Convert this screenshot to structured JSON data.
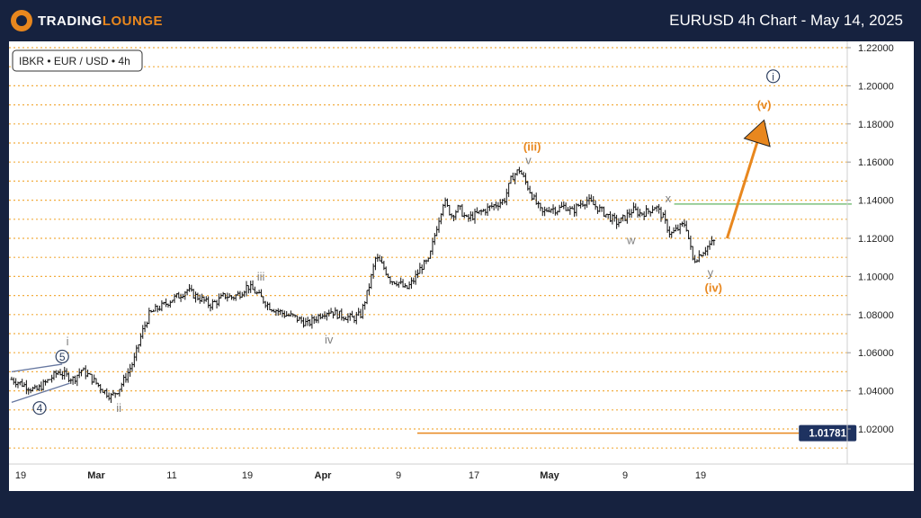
{
  "header": {
    "brand_main": "TRADING",
    "brand_accent": "LOUNGE",
    "title": "EURUSD 4h Chart - May 14, 2025"
  },
  "symbol_label": "IBKR • EUR / USD • 4h",
  "colors": {
    "background": "#16223f",
    "chart_bg": "#ffffff",
    "orange": "#e8871e",
    "navy": "#2b3d5f",
    "gray_label": "#808080",
    "green_line": "#7dc07d",
    "gridline": "#f0a020",
    "price_tag": "#1e3260"
  },
  "chart_data": {
    "type": "line",
    "title": "EURUSD 4h Chart - May 14, 2025",
    "xlabel": "",
    "ylabel": "",
    "ylim": [
      1.0,
      1.225
    ],
    "xlim": [
      0,
      111
    ],
    "y_ticks": [
      "1.22000",
      "1.20000",
      "1.18000",
      "1.16000",
      "1.14000",
      "1.12000",
      "1.10000",
      "1.08000",
      "1.06000",
      "1.04000",
      "1.02000"
    ],
    "y_tick_values": [
      1.22,
      1.2,
      1.18,
      1.16,
      1.14,
      1.12,
      1.1,
      1.08,
      1.06,
      1.04,
      1.02
    ],
    "x_ticks": [
      {
        "label": "19",
        "x": 0
      },
      {
        "label": "Mar",
        "x": 10
      },
      {
        "label": "11",
        "x": 20
      },
      {
        "label": "19",
        "x": 30
      },
      {
        "label": "Apr",
        "x": 40
      },
      {
        "label": "9",
        "x": 50
      },
      {
        "label": "17",
        "x": 60
      },
      {
        "label": "May",
        "x": 70
      },
      {
        "label": "9",
        "x": 80
      },
      {
        "label": "19",
        "x": 90
      }
    ],
    "grid": true,
    "series": [
      {
        "points": [
          [
            -1.2,
            1.046
          ],
          [
            0.5,
            1.043
          ],
          [
            2,
            1.04
          ],
          [
            3.5,
            1.045
          ],
          [
            5,
            1.05
          ],
          [
            6,
            1.048
          ],
          [
            7,
            1.046
          ],
          [
            8,
            1.051
          ],
          [
            9,
            1.048
          ],
          [
            10,
            1.044
          ],
          [
            11,
            1.04
          ],
          [
            12,
            1.037
          ],
          [
            13,
            1.041
          ],
          [
            14,
            1.048
          ],
          [
            15,
            1.056
          ],
          [
            16,
            1.07
          ],
          [
            17,
            1.08
          ],
          [
            18,
            1.083
          ],
          [
            19,
            1.085
          ],
          [
            20,
            1.088
          ],
          [
            21,
            1.09
          ],
          [
            22,
            1.093
          ],
          [
            23,
            1.09
          ],
          [
            24,
            1.088
          ],
          [
            25,
            1.085
          ],
          [
            26,
            1.087
          ],
          [
            27,
            1.09
          ],
          [
            28,
            1.089
          ],
          [
            29,
            1.091
          ],
          [
            30,
            1.095
          ],
          [
            31,
            1.092
          ],
          [
            32,
            1.088
          ],
          [
            33,
            1.084
          ],
          [
            34,
            1.082
          ],
          [
            35,
            1.08
          ],
          [
            36,
            1.079
          ],
          [
            37,
            1.077
          ],
          [
            38,
            1.075
          ],
          [
            39,
            1.078
          ],
          [
            40,
            1.081
          ],
          [
            41,
            1.082
          ],
          [
            42,
            1.08
          ],
          [
            43,
            1.079
          ],
          [
            44,
            1.078
          ],
          [
            45,
            1.08
          ],
          [
            46,
            1.093
          ],
          [
            47,
            1.11
          ],
          [
            48,
            1.105
          ],
          [
            49,
            1.098
          ],
          [
            50,
            1.097
          ],
          [
            51,
            1.093
          ],
          [
            52,
            1.098
          ],
          [
            53,
            1.105
          ],
          [
            54,
            1.108
          ],
          [
            55,
            1.125
          ],
          [
            56,
            1.14
          ],
          [
            57,
            1.132
          ],
          [
            58,
            1.136
          ],
          [
            59,
            1.13
          ],
          [
            60,
            1.132
          ],
          [
            61,
            1.134
          ],
          [
            62,
            1.136
          ],
          [
            63,
            1.138
          ],
          [
            64,
            1.14
          ],
          [
            65,
            1.152
          ],
          [
            66,
            1.156
          ],
          [
            67,
            1.148
          ],
          [
            68,
            1.14
          ],
          [
            69,
            1.133
          ],
          [
            70,
            1.136
          ],
          [
            71,
            1.135
          ],
          [
            72,
            1.137
          ],
          [
            73,
            1.134
          ],
          [
            74,
            1.138
          ],
          [
            75,
            1.14
          ],
          [
            76,
            1.137
          ],
          [
            77,
            1.134
          ],
          [
            78,
            1.131
          ],
          [
            79,
            1.128
          ],
          [
            80,
            1.131
          ],
          [
            81,
            1.135
          ],
          [
            82,
            1.133
          ],
          [
            83,
            1.134
          ],
          [
            84,
            1.137
          ],
          [
            85,
            1.131
          ],
          [
            86,
            1.122
          ],
          [
            87,
            1.125
          ],
          [
            88,
            1.128
          ],
          [
            89,
            1.108
          ],
          [
            90,
            1.112
          ],
          [
            91,
            1.116
          ],
          [
            92,
            1.119
          ]
        ]
      }
    ],
    "forecast_arrow": {
      "from": [
        93.5,
        1.12
      ],
      "to": [
        98.4,
        1.182
      ]
    },
    "green_line": {
      "x_from": 86.5,
      "x_to": 110,
      "y": 1.138
    },
    "support_line": {
      "x_from": 52.5,
      "x_to": 103,
      "y": 1.01781
    },
    "price_tag": "1.01781",
    "channel_lines": [
      {
        "from": [
          -1.2,
          1.05
        ],
        "to": [
          5.5,
          1.054
        ]
      },
      {
        "from": [
          -1.2,
          1.034
        ],
        "to": [
          6.5,
          1.044
        ]
      }
    ],
    "wave_labels": [
      {
        "text": "i",
        "x": 6.2,
        "y": 1.066,
        "style": "gray"
      },
      {
        "text": "5",
        "x": 5.5,
        "y": 1.058,
        "style": "circle-navy"
      },
      {
        "text": "4",
        "x": 2.5,
        "y": 1.031,
        "style": "circle-navy"
      },
      {
        "text": "ii",
        "x": 13.0,
        "y": 1.031,
        "style": "gray"
      },
      {
        "text": "iii",
        "x": 31.8,
        "y": 1.1,
        "style": "gray"
      },
      {
        "text": "iv",
        "x": 40.8,
        "y": 1.067,
        "style": "gray"
      },
      {
        "text": "(iii)",
        "x": 67.7,
        "y": 1.168,
        "style": "orange"
      },
      {
        "text": "v",
        "x": 67.2,
        "y": 1.161,
        "style": "gray"
      },
      {
        "text": "w",
        "x": 80.8,
        "y": 1.119,
        "style": "gray"
      },
      {
        "text": "x",
        "x": 85.7,
        "y": 1.141,
        "style": "gray"
      },
      {
        "text": "y",
        "x": 91.3,
        "y": 1.102,
        "style": "gray"
      },
      {
        "text": "(iv)",
        "x": 91.7,
        "y": 1.094,
        "style": "orange"
      },
      {
        "text": "(v)",
        "x": 98.4,
        "y": 1.19,
        "style": "orange"
      },
      {
        "text": "i",
        "x": 99.6,
        "y": 1.205,
        "style": "circle-navy"
      }
    ]
  }
}
